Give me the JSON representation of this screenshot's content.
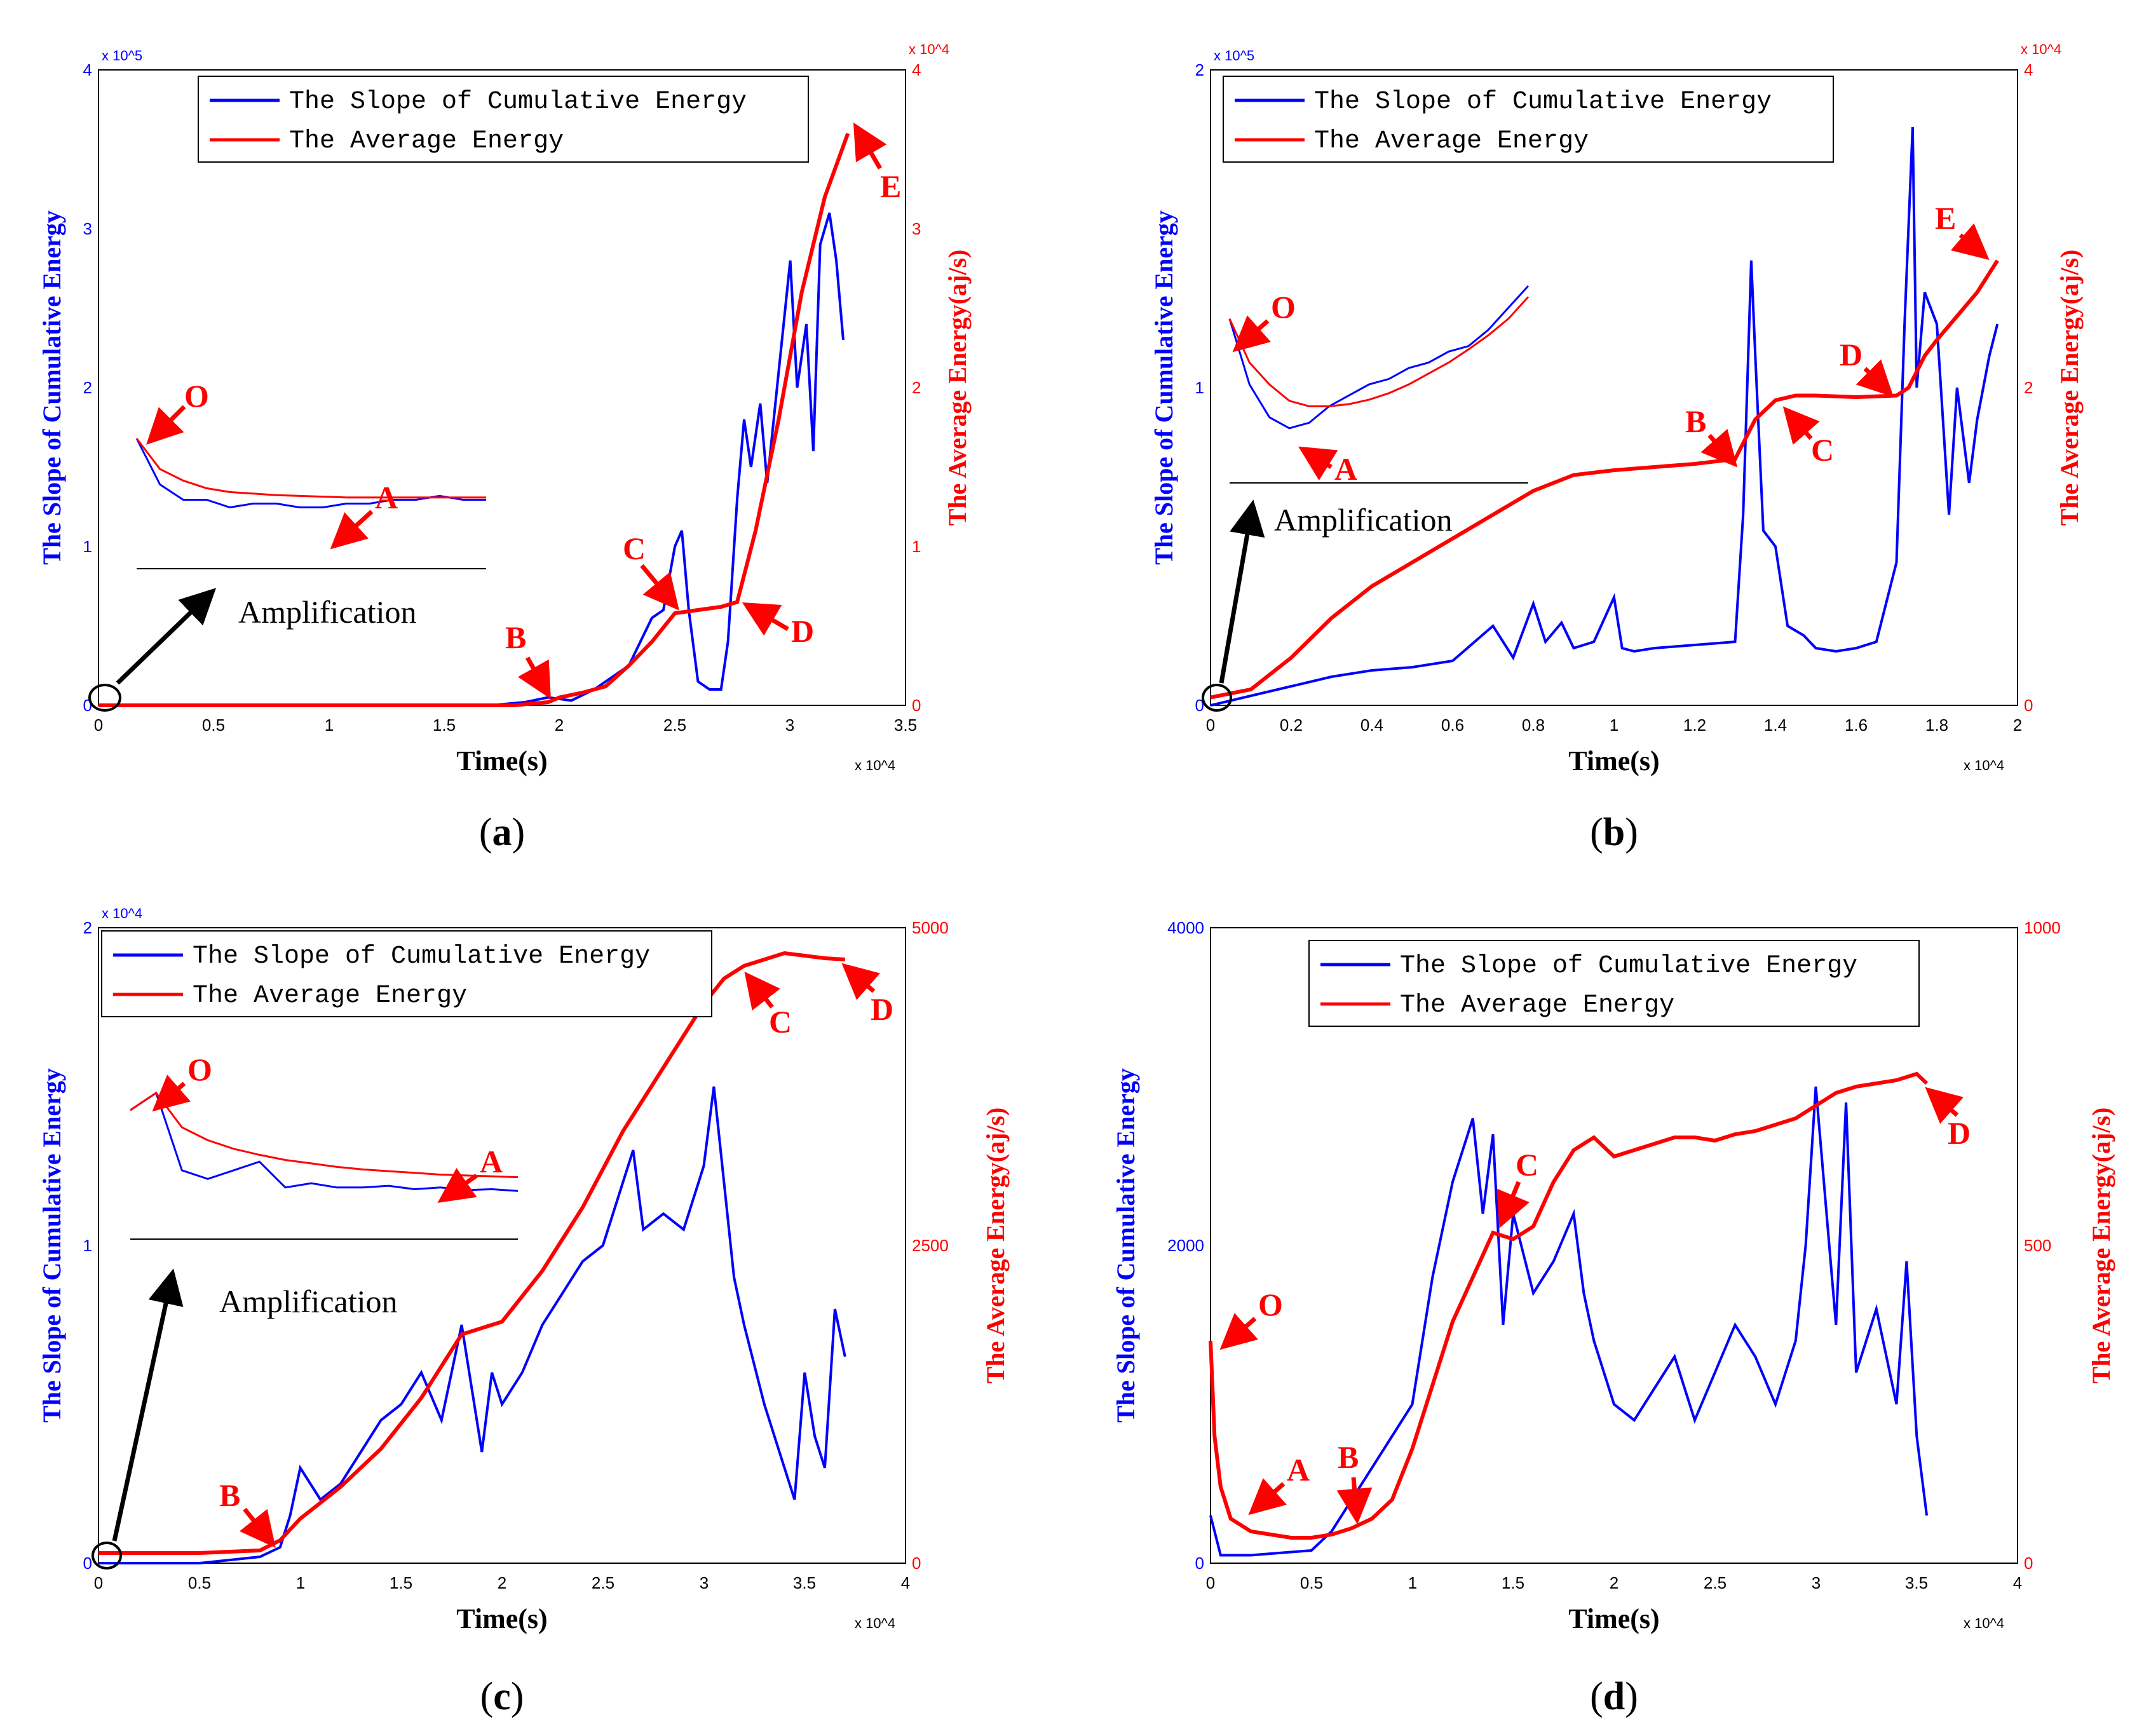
{
  "colors": {
    "slope": "#0000ff",
    "average": "#ff0000",
    "axis": "#000000"
  },
  "chart_data": [
    {
      "id": "a",
      "type": "line",
      "caption": "a",
      "xlabel": "Time(s)",
      "ylabel_left": "The Slope of Cumulative Energy",
      "ylabel_right": "The Average Energy(aj/s)",
      "xlim": [
        0,
        35000
      ],
      "ylim_left": [
        0,
        400000
      ],
      "ylim_right": [
        0,
        40000
      ],
      "x_ticks": [
        "0",
        "0.5",
        "1",
        "1.5",
        "2",
        "2.5",
        "3",
        "3.5"
      ],
      "x_multiplier": "x 10^4",
      "left_ticks": [
        "0",
        "1",
        "2",
        "3",
        "4"
      ],
      "left_multiplier": "x 10^5",
      "right_ticks": [
        "0",
        "1",
        "2",
        "3",
        "4"
      ],
      "right_multiplier": "x 10^4",
      "legend": [
        "The Slope of Cumulative Energy",
        "The Average Energy"
      ],
      "amplification_label": "Amplification",
      "series": [
        {
          "name": "The Slope of Cumulative Energy",
          "axis": "left",
          "x": [
            0,
            17000,
            18500,
            19500,
            20500,
            21500,
            22500,
            23000,
            23500,
            24000,
            24500,
            25000,
            25300,
            25600,
            26000,
            26500,
            27000,
            27300,
            27700,
            28000,
            28300,
            28700,
            29000,
            29500,
            30000,
            30300,
            30700,
            31000,
            31300,
            31700,
            32000,
            32300
          ],
          "values": [
            0,
            0,
            2000,
            5000,
            3000,
            10000,
            20000,
            25000,
            40000,
            55000,
            60000,
            100000,
            110000,
            60000,
            15000,
            10000,
            10000,
            40000,
            130000,
            180000,
            150000,
            190000,
            140000,
            210000,
            280000,
            200000,
            240000,
            160000,
            290000,
            310000,
            280000,
            230000
          ]
        },
        {
          "name": "The Average Energy",
          "axis": "right",
          "x": [
            0,
            18000,
            19500,
            20000,
            21000,
            22000,
            23000,
            24000,
            25000,
            26000,
            27000,
            27700,
            28500,
            29500,
            30500,
            31500,
            32500
          ],
          "values": [
            0,
            0,
            200,
            500,
            800,
            1200,
            2500,
            4000,
            5800,
            6000,
            6200,
            6500,
            11000,
            18000,
            26000,
            32000,
            36000
          ]
        }
      ],
      "inset": {
        "slope": [
          17,
          11,
          9,
          9,
          8,
          8.5,
          8.5,
          8,
          8,
          8.5,
          8.5,
          9,
          9,
          9.5,
          9,
          9
        ],
        "average": [
          17,
          13,
          11.5,
          10.5,
          10,
          9.8,
          9.6,
          9.5,
          9.4,
          9.3,
          9.3,
          9.3,
          9.3,
          9.3,
          9.3,
          9.3
        ]
      },
      "annotations": [
        "O",
        "A",
        "B",
        "C",
        "D",
        "E"
      ]
    },
    {
      "id": "b",
      "type": "line",
      "caption": "b",
      "xlabel": "Time(s)",
      "ylabel_left": "The Slope of Cumulative Energy",
      "ylabel_right": "The Average Energy(aj/s)",
      "xlim": [
        0,
        20000
      ],
      "ylim_left": [
        0,
        200000
      ],
      "ylim_right": [
        0,
        40000
      ],
      "x_ticks": [
        "0",
        "0.2",
        "0.4",
        "0.6",
        "0.8",
        "1",
        "1.2",
        "1.4",
        "1.6",
        "1.8",
        "2"
      ],
      "x_multiplier": "x 10^4",
      "left_ticks": [
        "0",
        "1",
        "2"
      ],
      "left_multiplier": "x 10^5",
      "right_ticks": [
        "0",
        "2",
        "4"
      ],
      "right_multiplier": "x 10^4",
      "legend": [
        "The Slope of Cumulative Energy",
        "The Average Energy"
      ],
      "amplification_label": "Amplification",
      "series": [
        {
          "name": "The Slope of Cumulative Energy",
          "axis": "left",
          "x": [
            0,
            1000,
            2000,
            3000,
            4000,
            5000,
            6000,
            7000,
            7500,
            8000,
            8300,
            8700,
            9000,
            9500,
            10000,
            10200,
            10500,
            11000,
            12000,
            13000,
            13200,
            13400,
            13500,
            13700,
            14000,
            14300,
            14700,
            15000,
            15500,
            16000,
            16500,
            17000,
            17200,
            17400,
            17500,
            17700,
            18000,
            18300,
            18500,
            18800,
            19000,
            19300,
            19500
          ],
          "values": [
            0,
            3000,
            6000,
            9000,
            11000,
            12000,
            14000,
            25000,
            15000,
            32000,
            20000,
            26000,
            18000,
            20000,
            34000,
            18000,
            17000,
            18000,
            19000,
            20000,
            60000,
            140000,
            110000,
            55000,
            50000,
            25000,
            22000,
            18000,
            17000,
            18000,
            20000,
            45000,
            120000,
            182000,
            100000,
            130000,
            120000,
            60000,
            100000,
            70000,
            90000,
            110000,
            120000
          ]
        },
        {
          "name": "The Average Energy",
          "axis": "right",
          "x": [
            0,
            1000,
            2000,
            3000,
            4000,
            5000,
            6000,
            7000,
            8000,
            9000,
            10000,
            11000,
            12000,
            13000,
            13500,
            14000,
            14500,
            15000,
            16000,
            17000,
            17300,
            17700,
            18000,
            18500,
            19000,
            19500
          ],
          "values": [
            500,
            1000,
            3000,
            5500,
            7500,
            9000,
            10500,
            12000,
            13500,
            14500,
            14800,
            15000,
            15200,
            15500,
            18000,
            19200,
            19500,
            19500,
            19400,
            19500,
            20000,
            22000,
            23000,
            24500,
            26000,
            28000
          ]
        }
      ],
      "inset": {
        "slope": [
          15,
          9,
          6,
          5,
          5.5,
          7,
          8,
          9,
          9.5,
          10.5,
          11,
          12,
          12.5,
          14,
          16,
          18
        ],
        "average": [
          15,
          11,
          9,
          7.5,
          7,
          7,
          7.2,
          7.6,
          8.2,
          9,
          10,
          11,
          12.2,
          13.5,
          15,
          17
        ]
      },
      "annotations": [
        "O",
        "A",
        "B",
        "C",
        "D",
        "E"
      ]
    },
    {
      "id": "c",
      "type": "line",
      "caption": "c",
      "xlabel": "Time(s)",
      "ylabel_left": "The Slope of Cumulative Energy",
      "ylabel_right": "The Average Energy(aj/s)",
      "xlim": [
        0,
        40000
      ],
      "ylim_left": [
        0,
        20000
      ],
      "ylim_right": [
        0,
        5000
      ],
      "x_ticks": [
        "0",
        "0.5",
        "1",
        "1.5",
        "2",
        "2.5",
        "3",
        "3.5",
        "4"
      ],
      "x_multiplier": "x 10^4",
      "left_ticks": [
        "0",
        "1",
        "2"
      ],
      "left_multiplier": "x 10^4",
      "right_ticks": [
        "0",
        "2500",
        "5000"
      ],
      "right_multiplier": "",
      "legend": [
        "The Slope of Cumulative Energy",
        "The Average Energy"
      ],
      "amplification_label": "Amplification",
      "series": [
        {
          "name": "The Slope of Cumulative Energy",
          "axis": "left",
          "x": [
            0,
            5000,
            8000,
            9000,
            9500,
            10000,
            11000,
            12000,
            13000,
            14000,
            15000,
            16000,
            17000,
            18000,
            19000,
            19500,
            20000,
            21000,
            22000,
            23000,
            24000,
            25000,
            26000,
            26500,
            27000,
            28000,
            29000,
            30000,
            30500,
            31000,
            31500,
            32000,
            33000,
            34000,
            34500,
            35000,
            35500,
            36000,
            36500,
            37000
          ],
          "values": [
            0,
            0,
            200,
            500,
            1500,
            3000,
            2000,
            2500,
            3500,
            4500,
            5000,
            6000,
            4500,
            7500,
            3500,
            6000,
            5000,
            6000,
            7500,
            8500,
            9500,
            10000,
            12000,
            13000,
            10500,
            11000,
            10500,
            12500,
            15000,
            12000,
            9000,
            7500,
            5000,
            3000,
            2000,
            6000,
            4000,
            3000,
            8000,
            6500
          ]
        },
        {
          "name": "The Average Energy",
          "axis": "right",
          "x": [
            0,
            5000,
            8000,
            9000,
            10000,
            12000,
            14000,
            16000,
            18000,
            20000,
            22000,
            24000,
            26000,
            28000,
            30000,
            31000,
            32000,
            33000,
            34000,
            35000,
            36000,
            37000
          ],
          "values": [
            80,
            80,
            100,
            180,
            350,
            600,
            900,
            1300,
            1800,
            1900,
            2300,
            2800,
            3400,
            3900,
            4400,
            4600,
            4700,
            4750,
            4800,
            4780,
            4760,
            4750
          ]
        }
      ],
      "inset": {
        "slope": [
          15,
          17,
          8,
          7,
          8,
          9,
          6,
          6.5,
          6,
          6,
          6.2,
          5.8,
          6,
          5.7,
          5.8,
          5.6
        ],
        "average": [
          15,
          17,
          13,
          11.5,
          10.5,
          9.8,
          9.2,
          8.8,
          8.4,
          8.1,
          7.9,
          7.7,
          7.5,
          7.4,
          7.3,
          7.2
        ]
      },
      "annotations": [
        "O",
        "A",
        "B",
        "C",
        "D"
      ]
    },
    {
      "id": "d",
      "type": "line",
      "caption": "d",
      "xlabel": "Time(s)",
      "ylabel_left": "The Slope of Cumulative Energy",
      "ylabel_right": "The Average Energy(aj/s)",
      "xlim": [
        0,
        40000
      ],
      "ylim_left": [
        0,
        4000
      ],
      "ylim_right": [
        0,
        1000
      ],
      "x_ticks": [
        "0",
        "0.5",
        "1",
        "1.5",
        "2",
        "2.5",
        "3",
        "3.5",
        "4"
      ],
      "x_multiplier": "x 10^4",
      "left_ticks": [
        "0",
        "2000",
        "4000"
      ],
      "left_multiplier": "",
      "right_ticks": [
        "0",
        "500",
        "1000"
      ],
      "right_multiplier": "",
      "legend": [
        "The Slope of Cumulative Energy",
        "The Average Energy"
      ],
      "series": [
        {
          "name": "The Slope of Cumulative Energy",
          "axis": "left",
          "x": [
            0,
            500,
            2000,
            5000,
            6000,
            7000,
            8000,
            9000,
            10000,
            11000,
            12000,
            13000,
            13500,
            14000,
            14500,
            15000,
            16000,
            17000,
            18000,
            18500,
            19000,
            20000,
            21000,
            22000,
            23000,
            24000,
            25000,
            26000,
            27000,
            28000,
            29000,
            29500,
            30000,
            31000,
            31500,
            32000,
            33000,
            34000,
            34500,
            35000,
            35500
          ],
          "values": [
            300,
            50,
            50,
            80,
            200,
            400,
            600,
            800,
            1000,
            1800,
            2400,
            2800,
            2200,
            2700,
            1500,
            2200,
            1700,
            1900,
            2200,
            1700,
            1400,
            1000,
            900,
            1100,
            1300,
            900,
            1200,
            1500,
            1300,
            1000,
            1400,
            2000,
            3000,
            1500,
            2900,
            1200,
            1600,
            1000,
            1900,
            800,
            300
          ]
        },
        {
          "name": "The Average Energy",
          "axis": "right",
          "x": [
            0,
            200,
            500,
            1000,
            2000,
            3000,
            4000,
            5000,
            6000,
            7000,
            8000,
            9000,
            10000,
            11000,
            12000,
            13000,
            14000,
            15000,
            16000,
            17000,
            18000,
            19000,
            20000,
            21000,
            22000,
            23000,
            24000,
            25000,
            26000,
            27000,
            28000,
            29000,
            30000,
            31000,
            32000,
            33000,
            34000,
            35000,
            35500
          ],
          "values": [
            350,
            200,
            120,
            70,
            50,
            45,
            40,
            40,
            45,
            55,
            70,
            100,
            180,
            280,
            380,
            450,
            520,
            510,
            530,
            600,
            650,
            670,
            640,
            650,
            660,
            670,
            670,
            665,
            675,
            680,
            690,
            700,
            720,
            740,
            750,
            755,
            760,
            770,
            755
          ]
        }
      ],
      "annotations": [
        "O",
        "A",
        "B",
        "C",
        "D"
      ]
    }
  ]
}
